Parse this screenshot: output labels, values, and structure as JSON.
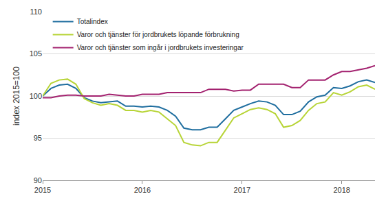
{
  "chart_data": {
    "type": "line",
    "y_label": "index 2015=100",
    "categories": [
      "2015",
      null,
      null,
      null,
      null,
      null,
      null,
      null,
      null,
      null,
      null,
      null,
      "2016",
      null,
      null,
      null,
      null,
      null,
      null,
      null,
      null,
      null,
      null,
      null,
      "2017",
      null,
      null,
      null,
      null,
      null,
      null,
      null,
      null,
      null,
      null,
      null,
      "2018",
      null,
      null,
      null,
      null
    ],
    "series": [
      {
        "name": "Totalindex",
        "color": "#1f6e9f",
        "values": [
          100,
          100.9,
          101.3,
          101.4,
          100.9,
          99.8,
          99.4,
          99.2,
          99.3,
          99.4,
          98.8,
          98.8,
          98.7,
          98.8,
          98.7,
          98.3,
          97.6,
          96.2,
          96.0,
          96.0,
          96.3,
          96.3,
          97.3,
          98.3,
          98.7,
          99.1,
          99.4,
          99.3,
          98.9,
          97.8,
          97.8,
          98.2,
          99.3,
          99.9,
          100.1,
          101.0,
          100.9,
          101.2,
          101.7,
          101.9,
          101.6
        ]
      },
      {
        "name": "Varor och tjänster för jordbrukets löpande förbrukning",
        "color": "#b7d436",
        "values": [
          100,
          101.5,
          101.9,
          102.0,
          101.4,
          99.7,
          99.2,
          98.9,
          99.1,
          98.9,
          98.3,
          98.3,
          98.1,
          98.3,
          98.1,
          97.3,
          96.5,
          94.5,
          94.2,
          94.1,
          94.5,
          94.5,
          96.0,
          97.4,
          97.9,
          98.4,
          98.6,
          98.4,
          97.9,
          96.3,
          96.5,
          97.1,
          98.3,
          99.1,
          99.3,
          100.4,
          100.1,
          100.5,
          101.1,
          101.3,
          100.8
        ]
      },
      {
        "name": "Varor och tjänster som ingår i jordbrukets investeringar",
        "color": "#a3226f",
        "values": [
          99.8,
          99.8,
          100,
          100.1,
          100.1,
          100,
          100,
          100,
          100.2,
          100.1,
          100,
          100,
          100.2,
          100.2,
          100.2,
          100.4,
          100.4,
          100.4,
          100.4,
          100.4,
          100.8,
          100.8,
          100.8,
          100.6,
          100.7,
          100.7,
          101.4,
          101.4,
          101.4,
          101.4,
          101.0,
          101.0,
          101.9,
          101.9,
          101.9,
          102.5,
          102.9,
          102.9,
          103.1,
          103.3,
          103.6
        ]
      }
    ],
    "ylim": [
      90,
      110
    ],
    "yticks": [
      90,
      95,
      100,
      105,
      110
    ],
    "grid": true,
    "legend": "top-left"
  }
}
